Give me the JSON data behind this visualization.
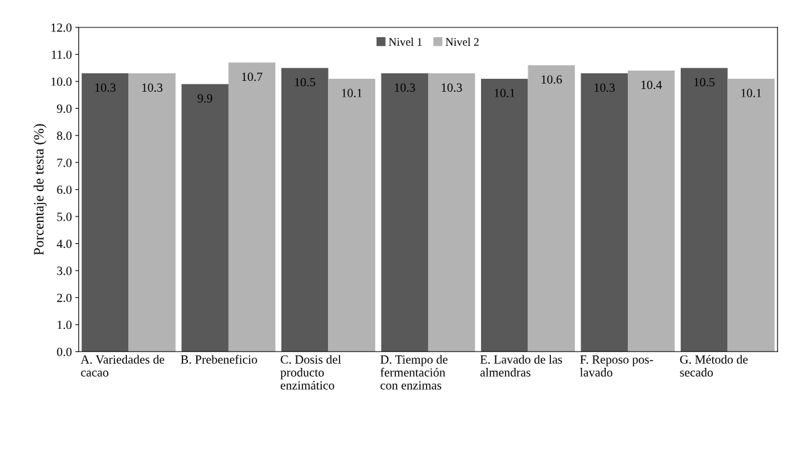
{
  "chart_data": {
    "type": "bar",
    "ylabel": "Porcentaje de testa (%)",
    "categories": [
      "A. Variedades de\ncacao",
      "B. Prebeneficio",
      "C. Dosis del\nproducto\nenzimático",
      "D. Tiempo de\nfermentación\ncon enzimas",
      "E. Lavado de las\nalmendras",
      "F. Reposo pos-\nlavado",
      "G. Método de\nsecado"
    ],
    "series": [
      {
        "name": "Nivel 1",
        "color": "#595959",
        "values": [
          10.3,
          9.9,
          10.5,
          10.3,
          10.1,
          10.3,
          10.5
        ]
      },
      {
        "name": "Nivel 2",
        "color": "#b3b3b3",
        "values": [
          10.3,
          10.7,
          10.1,
          10.3,
          10.6,
          10.4,
          10.1
        ]
      }
    ],
    "ylim": [
      0,
      12
    ],
    "yticks": [
      {
        "value": 0,
        "label": "0.0"
      },
      {
        "value": 1,
        "label": "1.0"
      },
      {
        "value": 2,
        "label": "2.0"
      },
      {
        "value": 3,
        "label": "3.0"
      },
      {
        "value": 4,
        "label": "4.0"
      },
      {
        "value": 5,
        "label": "5.0"
      },
      {
        "value": 6,
        "label": "6.0"
      },
      {
        "value": 7,
        "label": "7.0"
      },
      {
        "value": 8,
        "label": "8.0"
      },
      {
        "value": 9,
        "label": "9.0"
      },
      {
        "value": 10,
        "label": "10.0"
      },
      {
        "value": 11,
        "label": "11.0"
      },
      {
        "value": 12,
        "label": "12.0"
      }
    ],
    "data_labels": true,
    "legend": "top",
    "grid": false
  }
}
